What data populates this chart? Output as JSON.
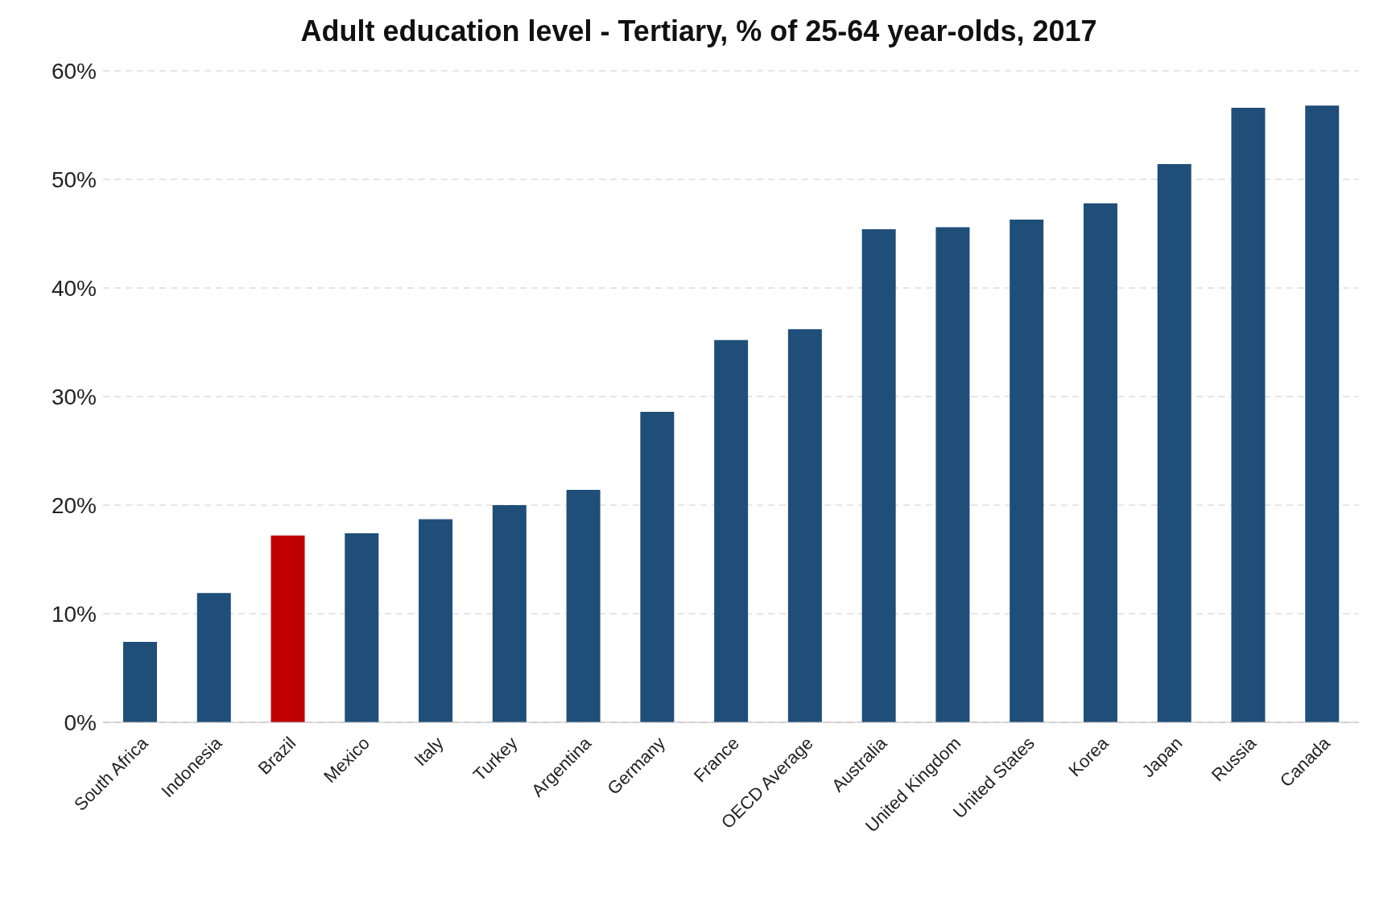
{
  "chart_data": {
    "type": "bar",
    "title": "Adult education level - Tertiary, % of 25-64 year-olds, 2017",
    "categories": [
      "South Africa",
      "Indonesia",
      "Brazil",
      "Mexico",
      "Italy",
      "Turkey",
      "Argentina",
      "Germany",
      "France",
      "OECD Average",
      "Australia",
      "United Kingdom",
      "United States",
      "Korea",
      "Japan",
      "Russia",
      "Canada"
    ],
    "values": [
      7.4,
      11.9,
      17.2,
      17.4,
      18.7,
      20.0,
      21.4,
      28.6,
      35.2,
      36.2,
      45.4,
      45.6,
      46.3,
      47.8,
      51.4,
      56.6,
      56.8
    ],
    "colors": [
      "#1f4e79",
      "#1f4e79",
      "#c00000",
      "#1f4e79",
      "#1f4e79",
      "#1f4e79",
      "#1f4e79",
      "#1f4e79",
      "#1f4e79",
      "#1f4e79",
      "#1f4e79",
      "#1f4e79",
      "#1f4e79",
      "#1f4e79",
      "#1f4e79",
      "#1f4e79",
      "#1f4e79"
    ],
    "ylim": [
      0,
      60
    ],
    "yticks": [
      {
        "value": 0,
        "label": "0%"
      },
      {
        "value": 10,
        "label": "10%"
      },
      {
        "value": 20,
        "label": "20%"
      },
      {
        "value": 30,
        "label": "30%"
      },
      {
        "value": 40,
        "label": "40%"
      },
      {
        "value": 50,
        "label": "50%"
      },
      {
        "value": 60,
        "label": "60%"
      }
    ],
    "grid": "y"
  }
}
